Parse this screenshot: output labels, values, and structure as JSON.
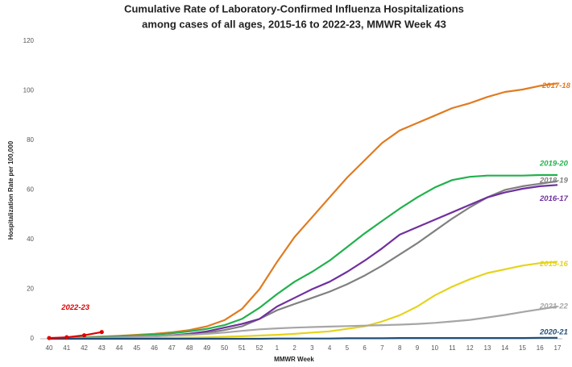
{
  "chart_data": {
    "type": "line",
    "title": "Cumulative Rate of Laboratory-Confirmed  Influenza Hospitalizations",
    "subtitle": "among cases of all ages, 2015-16 to 2022-23, MMWR Week 43",
    "x_label": "MMWR Week",
    "y_label": "Hospitalization Rate per 100,000",
    "categories": [
      "40",
      "41",
      "42",
      "43",
      "44",
      "45",
      "46",
      "47",
      "48",
      "49",
      "50",
      "51",
      "52",
      "1",
      "2",
      "3",
      "4",
      "5",
      "6",
      "7",
      "8",
      "9",
      "10",
      "11",
      "12",
      "13",
      "14",
      "15",
      "16",
      "17"
    ],
    "ylim": [
      0,
      120
    ],
    "yticks": [
      0,
      20,
      40,
      60,
      80,
      100,
      120
    ],
    "grid": false,
    "series": [
      {
        "name": "2017-18",
        "color": "#e07b20",
        "values": [
          0.2,
          0.4,
          0.6,
          0.9,
          1.2,
          1.6,
          2,
          2.6,
          3.5,
          5,
          7.5,
          12,
          20,
          31,
          41,
          49,
          57,
          65,
          72,
          79,
          84,
          87,
          90,
          93,
          95,
          97.5,
          99.5,
          100.5,
          102,
          103
        ]
      },
      {
        "name": "2019-20",
        "color": "#22b14c",
        "values": [
          0.2,
          0.3,
          0.5,
          0.7,
          1,
          1.3,
          1.7,
          2.2,
          3,
          4,
          5.5,
          8,
          12.5,
          18,
          23,
          27,
          31.5,
          37,
          42.5,
          47.5,
          52.5,
          57,
          61,
          64,
          65.3,
          65.8,
          65.8,
          65.8,
          66,
          66
        ]
      },
      {
        "name": "2018-19",
        "color": "#808080",
        "values": [
          0.1,
          0.2,
          0.3,
          0.5,
          0.7,
          0.9,
          1.1,
          1.4,
          1.8,
          2.4,
          3.5,
          5,
          8,
          11.5,
          14,
          16.5,
          19,
          22,
          25.5,
          29.5,
          34,
          38.5,
          43.5,
          48.5,
          53,
          57,
          60,
          61.5,
          62.5,
          63.5
        ]
      },
      {
        "name": "2016-17",
        "color": "#7030a0",
        "values": [
          0.1,
          0.2,
          0.3,
          0.4,
          0.6,
          0.8,
          1,
          1.4,
          2,
          3,
          4.5,
          6,
          8,
          13,
          16.5,
          20,
          23,
          27,
          31.5,
          36.5,
          42,
          45,
          48,
          51,
          54,
          57,
          59,
          60.5,
          61.5,
          62
        ]
      },
      {
        "name": "2015-16",
        "color": "#e6d31c",
        "values": [
          0.1,
          0.1,
          0.1,
          0.2,
          0.2,
          0.3,
          0.3,
          0.4,
          0.5,
          0.6,
          0.8,
          1,
          1.3,
          1.6,
          2,
          2.5,
          3,
          4,
          5,
          7,
          9.5,
          13,
          17.5,
          21,
          24,
          26.5,
          28,
          29.5,
          30.5,
          31
        ]
      },
      {
        "name": "2021-22",
        "color": "#a6a6a6",
        "values": [
          0.1,
          0.2,
          0.3,
          0.4,
          0.6,
          0.8,
          1,
          1.3,
          1.6,
          2,
          2.5,
          3.2,
          3.8,
          4.2,
          4.5,
          4.7,
          4.9,
          5.1,
          5.3,
          5.5,
          5.7,
          6,
          6.4,
          7,
          7.6,
          8.6,
          9.6,
          10.8,
          11.9,
          13
        ]
      },
      {
        "name": "2020-21",
        "color": "#1f4e79",
        "values": [
          0,
          0,
          0,
          0,
          0,
          0,
          0,
          0,
          0,
          0,
          0,
          0,
          0,
          0.1,
          0.1,
          0.1,
          0.1,
          0.2,
          0.2,
          0.2,
          0.3,
          0.3,
          0.3,
          0.3,
          0.3,
          0.3,
          0.3,
          0.3,
          0.4,
          0.4
        ]
      },
      {
        "name": "2022-23",
        "color": "#e00000",
        "markers": true,
        "values": [
          0.3,
          0.6,
          1.4,
          2.7,
          null,
          null,
          null,
          null,
          null,
          null,
          null,
          null,
          null,
          null,
          null,
          null,
          null,
          null,
          null,
          null,
          null,
          null,
          null,
          null,
          null,
          null,
          null,
          null,
          null,
          null
        ]
      }
    ]
  }
}
